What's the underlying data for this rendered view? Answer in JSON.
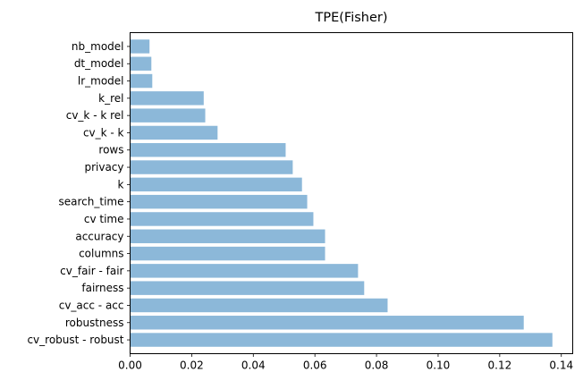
{
  "chart_data": {
    "type": "bar",
    "orientation": "horizontal",
    "title": "TPE(Fisher)",
    "xlabel": "",
    "ylabel": "",
    "xlim": [
      0,
      0.1437
    ],
    "xticks": [
      0.0,
      0.02,
      0.04,
      0.06,
      0.08,
      0.1,
      0.12,
      0.14
    ],
    "xtick_labels": [
      "0.00",
      "0.02",
      "0.04",
      "0.06",
      "0.08",
      "0.10",
      "0.12",
      "0.14"
    ],
    "grid": false,
    "bar_color": "#8cb8d9",
    "categories": [
      "nb_model",
      "dt_model",
      "lr_model",
      "k_rel",
      "cv_k - k rel",
      "cv_k - k",
      "rows",
      "privacy",
      "k",
      "search_time",
      "cv time",
      "accuracy",
      "columns",
      "cv_fair - fair",
      "fairness",
      "cv_acc - acc",
      "robustness",
      "cv_robust - robust"
    ],
    "values": [
      0.0063,
      0.0069,
      0.0072,
      0.0239,
      0.0244,
      0.0284,
      0.0505,
      0.0528,
      0.0558,
      0.0575,
      0.0595,
      0.0633,
      0.0633,
      0.074,
      0.076,
      0.0836,
      0.1278,
      0.1371
    ]
  }
}
